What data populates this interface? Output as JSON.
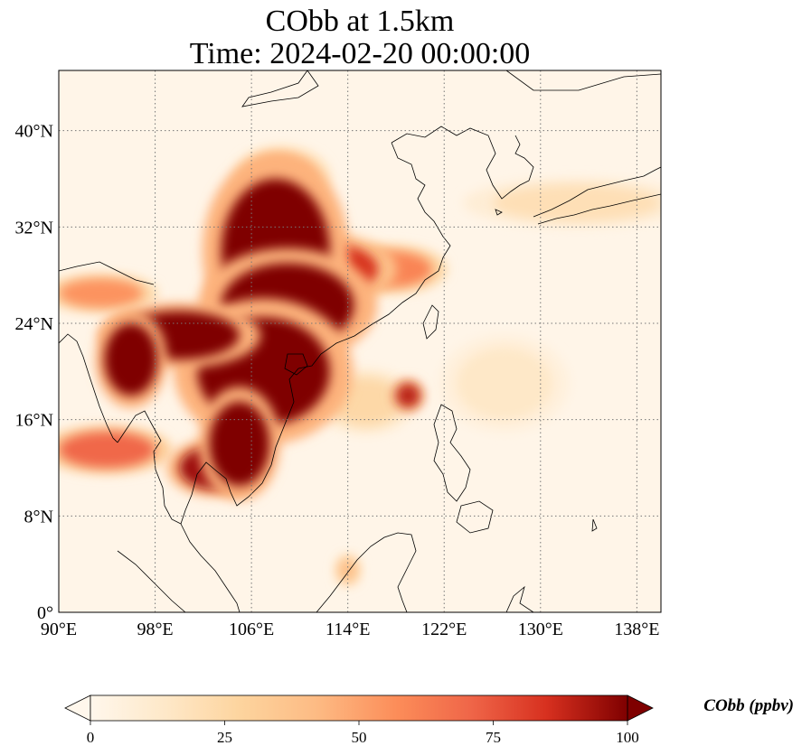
{
  "title": {
    "line1": "CObb at 1.5km",
    "line2": "Time: 2024-02-20 00:00:00"
  },
  "map": {
    "lon_range": [
      90,
      140
    ],
    "lat_range": [
      0,
      45
    ],
    "lon_ticks": [
      {
        "value": 90,
        "label": "90°E"
      },
      {
        "value": 98,
        "label": "98°E"
      },
      {
        "value": 106,
        "label": "106°E"
      },
      {
        "value": 114,
        "label": "114°E"
      },
      {
        "value": 122,
        "label": "122°E"
      },
      {
        "value": 130,
        "label": "130°E"
      },
      {
        "value": 138,
        "label": "138°E"
      }
    ],
    "lat_ticks": [
      {
        "value": 0,
        "label": "0°"
      },
      {
        "value": 8,
        "label": "8°N"
      },
      {
        "value": 16,
        "label": "16°N"
      },
      {
        "value": 24,
        "label": "24°N"
      },
      {
        "value": 32,
        "label": "32°N"
      },
      {
        "value": 40,
        "label": "40°N"
      }
    ],
    "gridlines": "dotted",
    "coastlines": true,
    "colormap": "OrRd",
    "colors": {
      "low": "#fff7ec",
      "mid": "#fdbb84",
      "high": "#d7301f",
      "max": "#7f0000",
      "coast": "#000000"
    }
  },
  "colorbar": {
    "label": "CObb (ppbv)",
    "min": 0,
    "max": 100,
    "extend": "both",
    "ticks": [
      {
        "value": 0,
        "label": "0"
      },
      {
        "value": 25,
        "label": "25"
      },
      {
        "value": 50,
        "label": "50"
      },
      {
        "value": 75,
        "label": "75"
      },
      {
        "value": 100,
        "label": "100"
      }
    ]
  },
  "field": {
    "units": "ppbv",
    "plumes": [
      {
        "lon": 108.0,
        "lat": 30.0,
        "rlon": 4.5,
        "rlat": 6.0,
        "value": 100
      },
      {
        "lon": 109.0,
        "lat": 25.5,
        "rlon": 5.5,
        "rlat": 3.5,
        "value": 100
      },
      {
        "lon": 107.0,
        "lat": 20.0,
        "rlon": 5.5,
        "rlat": 4.5,
        "value": 100
      },
      {
        "lon": 100.0,
        "lat": 23.0,
        "rlon": 5.0,
        "rlat": 2.0,
        "value": 100
      },
      {
        "lon": 96.0,
        "lat": 21.0,
        "rlon": 2.2,
        "rlat": 3.0,
        "value": 100
      },
      {
        "lon": 105.0,
        "lat": 14.0,
        "rlon": 2.5,
        "rlat": 3.5,
        "value": 100
      },
      {
        "lon": 103.0,
        "lat": 12.0,
        "rlon": 3.0,
        "rlat": 1.8,
        "value": 95
      },
      {
        "lon": 112.0,
        "lat": 28.5,
        "rlon": 4.5,
        "rlat": 2.2,
        "value": 85
      },
      {
        "lon": 117.5,
        "lat": 28.5,
        "rlon": 3.5,
        "rlat": 1.5,
        "value": 60
      },
      {
        "lon": 93.5,
        "lat": 26.5,
        "rlon": 3.5,
        "rlat": 1.2,
        "value": 55
      },
      {
        "lon": 94.0,
        "lat": 13.5,
        "rlon": 4.0,
        "rlat": 1.5,
        "value": 70
      },
      {
        "lon": 119.0,
        "lat": 18.0,
        "rlon": 1.0,
        "rlat": 1.0,
        "value": 90
      },
      {
        "lon": 115.5,
        "lat": 17.5,
        "rlon": 3.0,
        "rlat": 2.0,
        "value": 25
      },
      {
        "lon": 108.5,
        "lat": 36.0,
        "rlon": 3.0,
        "rlat": 2.0,
        "value": 45
      },
      {
        "lon": 133.0,
        "lat": 34.0,
        "rlon": 7.0,
        "rlat": 1.5,
        "value": 20
      },
      {
        "lon": 127.0,
        "lat": 19.0,
        "rlon": 4.0,
        "rlat": 3.0,
        "value": 14
      },
      {
        "lon": 114.0,
        "lat": 3.5,
        "rlon": 0.8,
        "rlat": 1.0,
        "value": 40
      }
    ]
  }
}
